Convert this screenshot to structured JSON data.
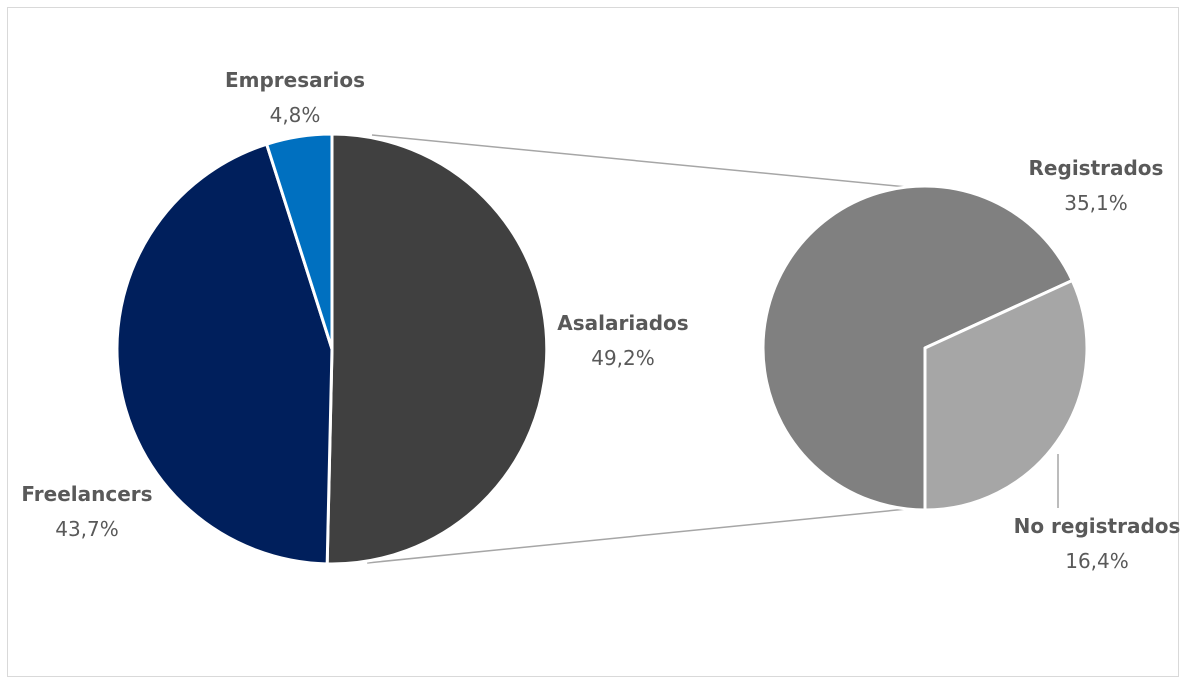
{
  "chart_data": {
    "type": "pie",
    "main": {
      "slices": [
        {
          "label": "Asalariados",
          "value_label": "49,2%",
          "value": 49.2,
          "color": "#404040"
        },
        {
          "label": "Freelancers",
          "value_label": "43,7%",
          "value": 43.7,
          "color": "#001f5c"
        },
        {
          "label": "Empresarios",
          "value_label": "4,8%",
          "value": 4.8,
          "color": "#0070c0"
        }
      ]
    },
    "breakdown_of": "Asalariados",
    "secondary": {
      "slices": [
        {
          "label": "Registrados",
          "value_label": "35,1%",
          "value": 35.1,
          "color": "#808080"
        },
        {
          "label": "No registrados",
          "value_label": "16,4%",
          "value": 16.4,
          "color": "#a6a6a6"
        }
      ]
    },
    "connector_color": "#a6a6a6"
  }
}
